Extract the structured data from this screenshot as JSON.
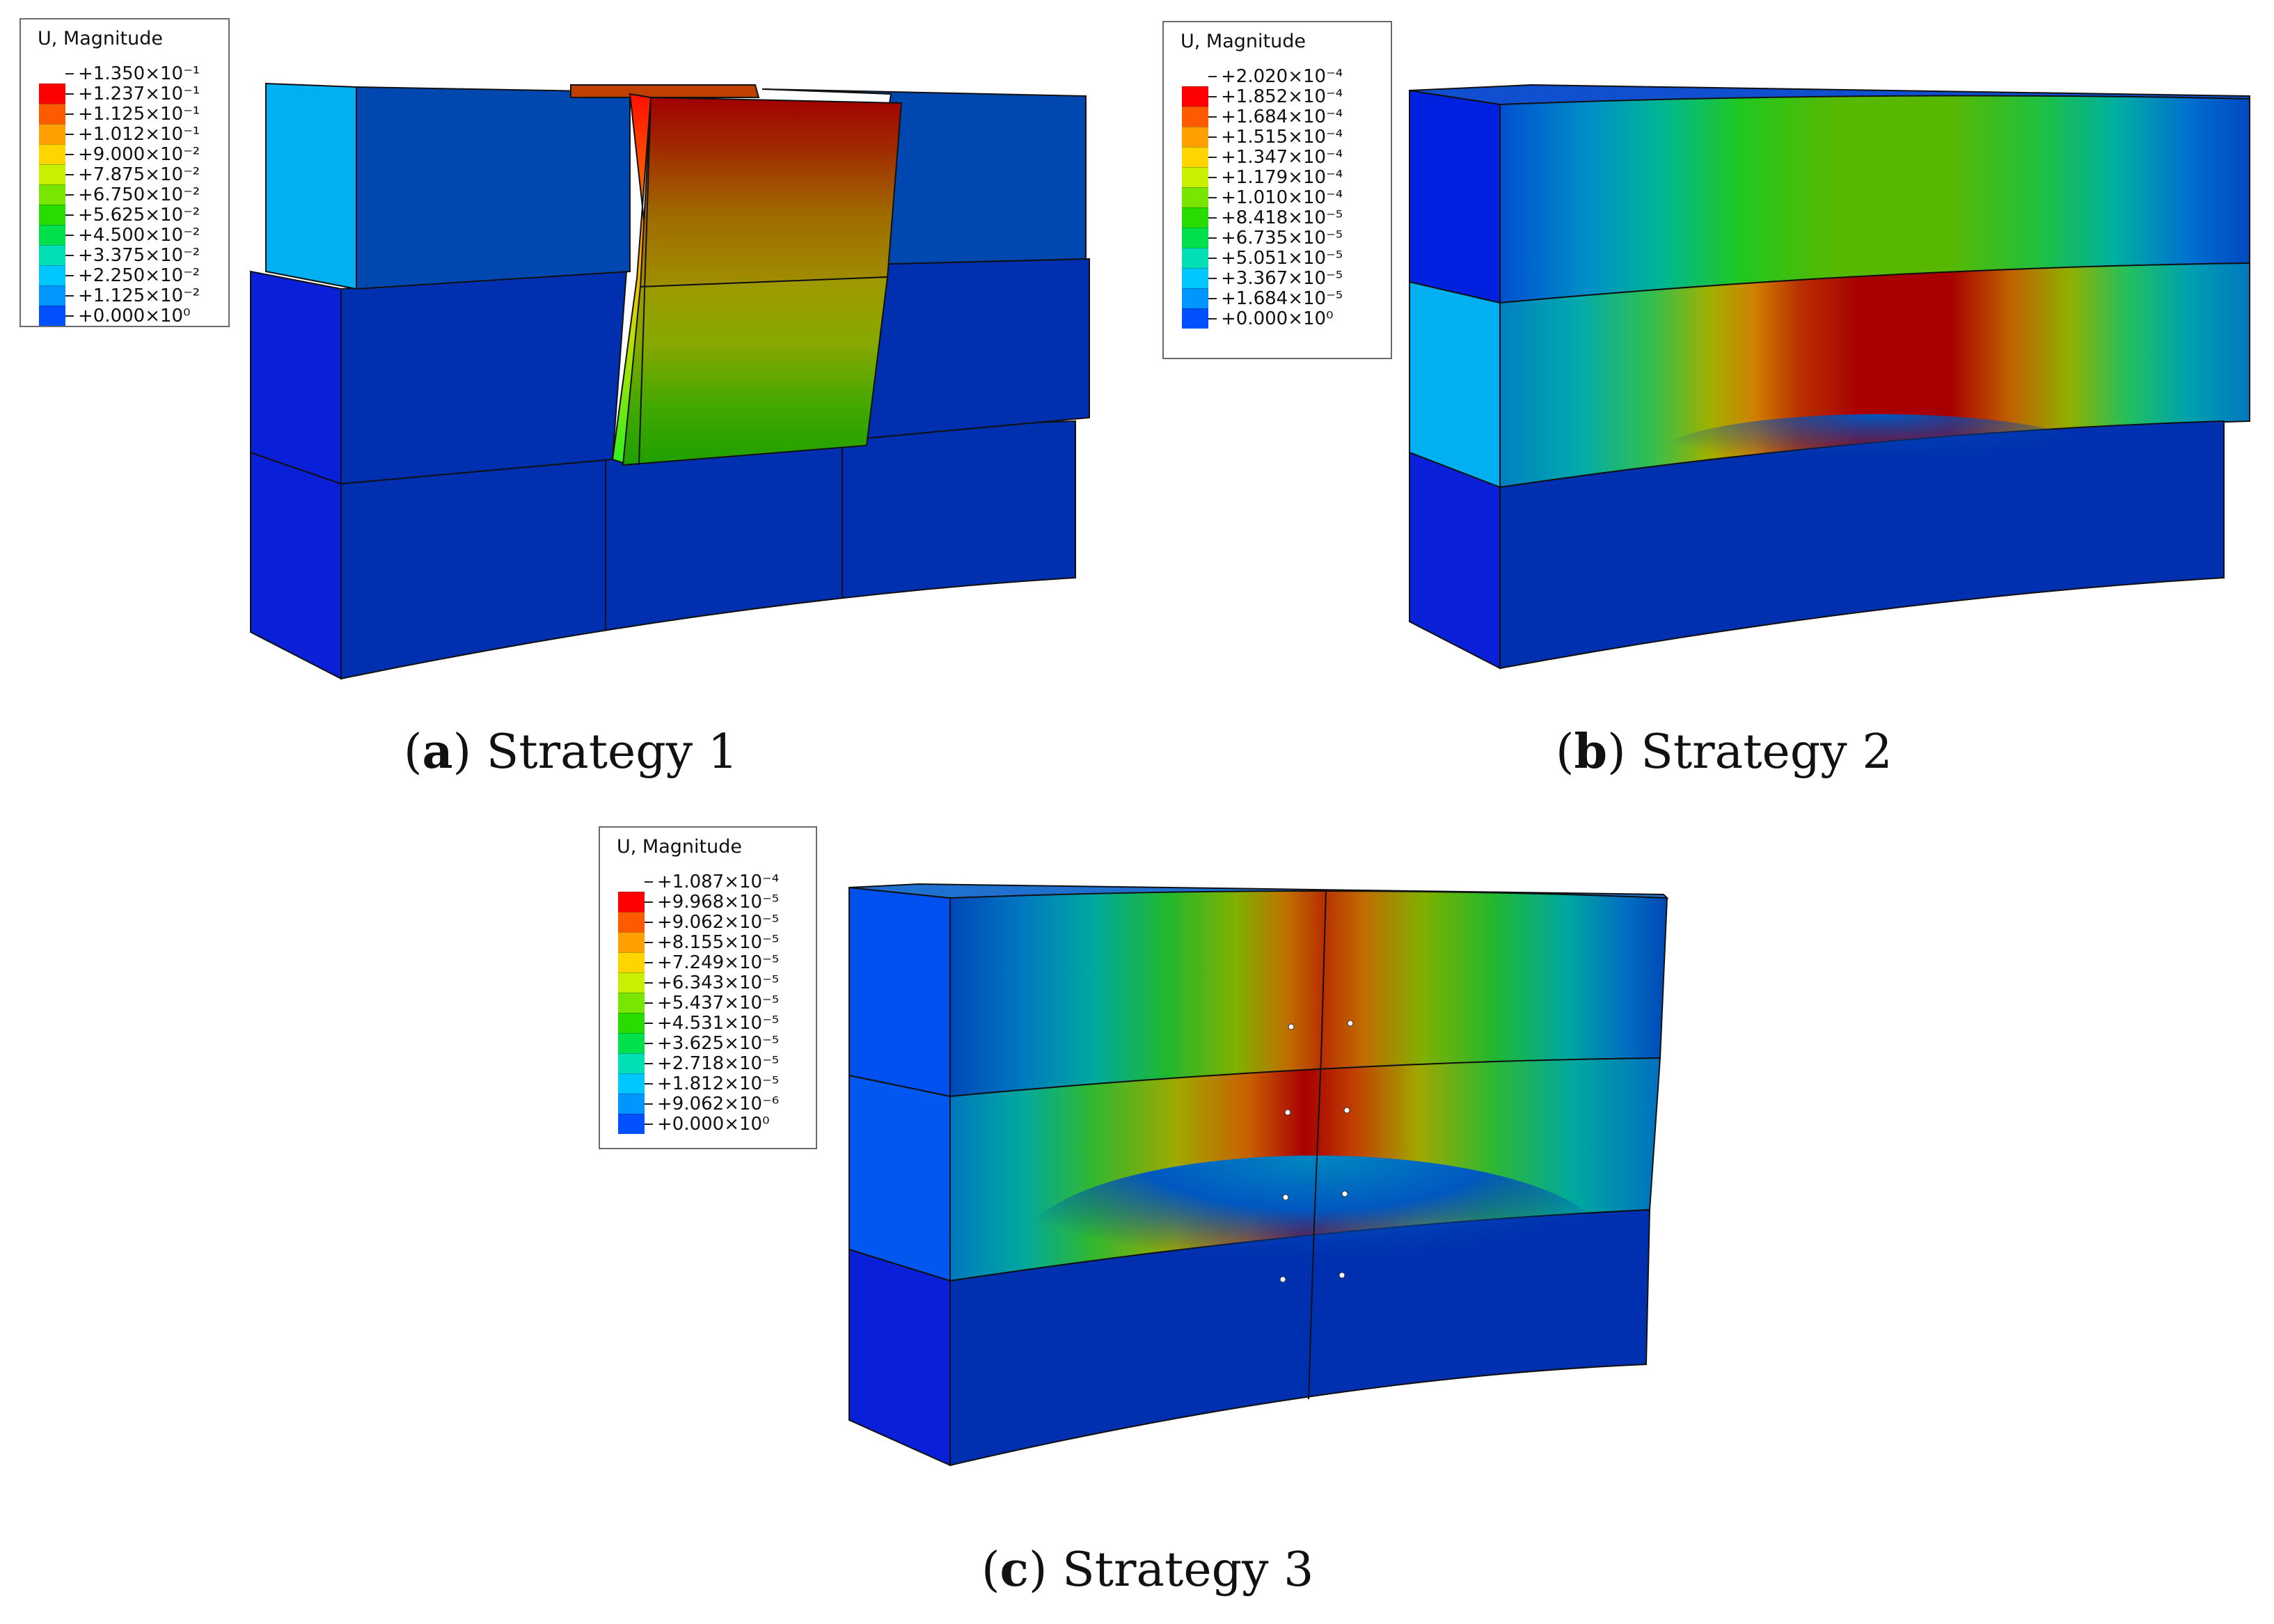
{
  "panels": [
    {
      "id": "a",
      "legend": {
        "title": "U, Magnitude",
        "labels": [
          "+1.350×10⁻¹",
          "+1.237×10⁻¹",
          "+1.125×10⁻¹",
          "+1.012×10⁻¹",
          "+9.000×10⁻²",
          "+7.875×10⁻²",
          "+6.750×10⁻²",
          "+5.625×10⁻²",
          "+4.500×10⁻²",
          "+3.375×10⁻²",
          "+2.250×10⁻²",
          "+1.125×10⁻²",
          "+0.000×10⁰"
        ]
      },
      "caption": {
        "letter": "a",
        "text": "Strategy 1"
      }
    },
    {
      "id": "b",
      "legend": {
        "title": "U, Magnitude",
        "labels": [
          "+2.020×10⁻⁴",
          "+1.852×10⁻⁴",
          "+1.684×10⁻⁴",
          "+1.515×10⁻⁴",
          "+1.347×10⁻⁴",
          "+1.179×10⁻⁴",
          "+1.010×10⁻⁴",
          "+8.418×10⁻⁵",
          "+6.735×10⁻⁵",
          "+5.051×10⁻⁵",
          "+3.367×10⁻⁵",
          "+1.684×10⁻⁵",
          "+0.000×10⁰"
        ]
      },
      "caption": {
        "letter": "b",
        "text": "Strategy 2"
      }
    },
    {
      "id": "c",
      "legend": {
        "title": "U, Magnitude",
        "labels": [
          "+1.087×10⁻⁴",
          "+9.968×10⁻⁵",
          "+9.062×10⁻⁵",
          "+8.155×10⁻⁵",
          "+7.249×10⁻⁵",
          "+6.343×10⁻⁵",
          "+5.437×10⁻⁵",
          "+4.531×10⁻⁵",
          "+3.625×10⁻⁵",
          "+2.718×10⁻⁵",
          "+1.812×10⁻⁵",
          "+9.062×10⁻⁶",
          "+0.000×10⁰"
        ]
      },
      "caption": {
        "letter": "c",
        "text": "Strategy 3"
      }
    }
  ],
  "contour_colors": [
    "#ff0000",
    "#ff5a00",
    "#ff9f00",
    "#ffd500",
    "#c8f000",
    "#78e600",
    "#28dc00",
    "#00e04a",
    "#00e0b4",
    "#00c8ff",
    "#0096ff",
    "#0050ff",
    "#0000ff"
  ]
}
